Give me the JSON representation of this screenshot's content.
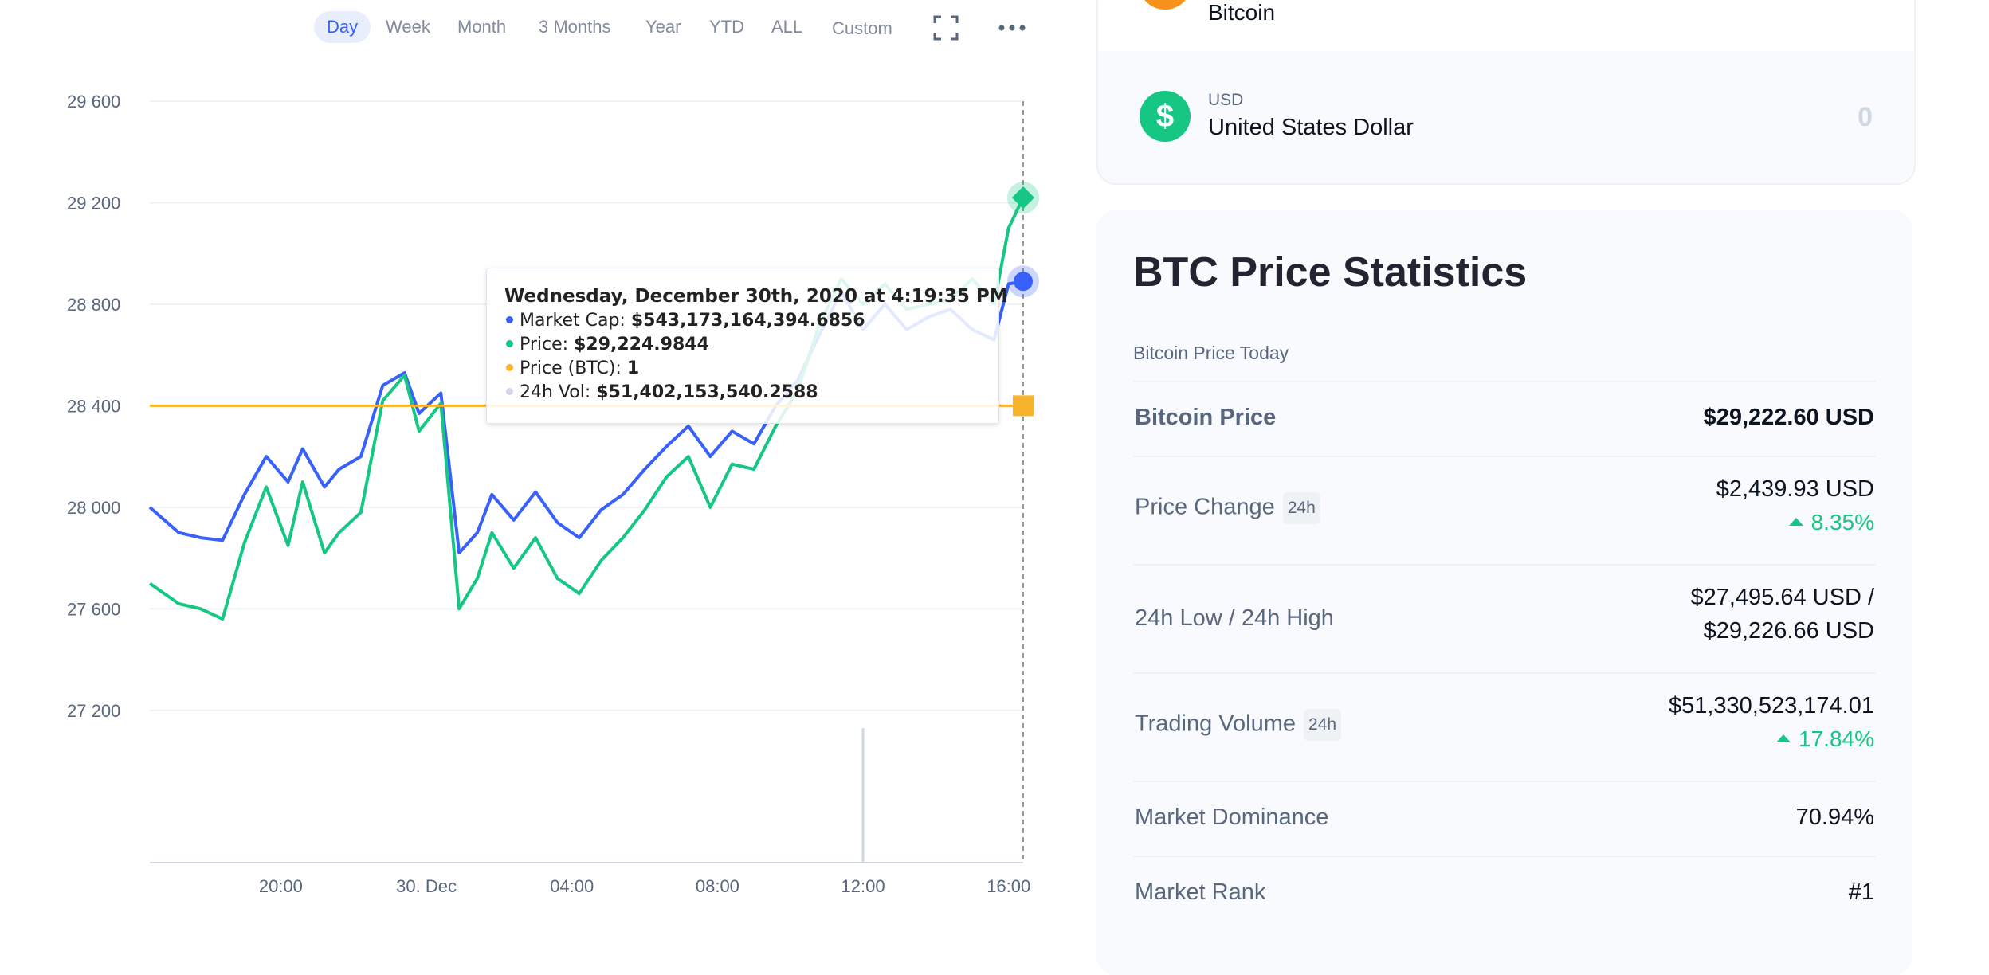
{
  "chart_toolbar": {
    "ranges": [
      "Day",
      "Week",
      "Month",
      "3 Months",
      "Year",
      "YTD",
      "ALL",
      "Custom"
    ],
    "active": "Day",
    "icons": [
      "fullscreen-icon",
      "more-horizontal-icon"
    ]
  },
  "chart_data": {
    "type": "line",
    "y_ticks": [
      "29 600",
      "29 200",
      "28 800",
      "28 400",
      "28 000",
      "27 600",
      "27 200"
    ],
    "ylim": [
      26600,
      29600
    ],
    "x_ticks": [
      "20:00",
      "30. Dec",
      "04:00",
      "08:00",
      "12:00",
      "16:00"
    ],
    "x_tick_hours": [
      20,
      24,
      28,
      32,
      36,
      40
    ],
    "xlim_hours": [
      16.4,
      40.4
    ],
    "grid": true,
    "series": [
      {
        "name": "Market Cap",
        "color": "#3861fb",
        "x": [
          16.4,
          17.2,
          17.8,
          18.4,
          19.0,
          19.6,
          20.2,
          20.6,
          21.2,
          21.6,
          22.2,
          22.8,
          23.4,
          23.8,
          24.4,
          24.9,
          25.4,
          25.8,
          26.4,
          27.0,
          27.6,
          28.2,
          28.8,
          29.4,
          30.0,
          30.6,
          31.2,
          31.8,
          32.4,
          33.0,
          33.6,
          34.2,
          34.8,
          35.4,
          36.0,
          36.6,
          37.2,
          37.8,
          38.4,
          39.0,
          39.6,
          40.0,
          40.4
        ],
        "values": [
          28000,
          27900,
          27880,
          27870,
          28050,
          28200,
          28100,
          28230,
          28080,
          28150,
          28200,
          28480,
          28530,
          28370,
          28450,
          27820,
          27900,
          28050,
          27950,
          28060,
          27940,
          27880,
          27990,
          28050,
          28150,
          28240,
          28320,
          28200,
          28300,
          28250,
          28400,
          28500,
          28680,
          28850,
          28700,
          28800,
          28700,
          28750,
          28780,
          28700,
          28660,
          28880,
          28890
        ]
      },
      {
        "name": "Price",
        "color": "#16c784",
        "x": [
          16.4,
          17.2,
          17.8,
          18.4,
          19.0,
          19.6,
          20.2,
          20.6,
          21.2,
          21.6,
          22.2,
          22.8,
          23.4,
          23.8,
          24.4,
          24.9,
          25.4,
          25.8,
          26.4,
          27.0,
          27.6,
          28.2,
          28.8,
          29.4,
          30.0,
          30.6,
          31.2,
          31.8,
          32.4,
          33.0,
          33.6,
          34.2,
          34.8,
          35.4,
          36.0,
          36.6,
          37.2,
          37.8,
          38.4,
          39.0,
          39.6,
          40.0,
          40.4
        ],
        "values": [
          27700,
          27620,
          27600,
          27560,
          27860,
          28080,
          27850,
          28100,
          27820,
          27900,
          27980,
          28420,
          28520,
          28300,
          28410,
          27600,
          27720,
          27900,
          27760,
          27880,
          27720,
          27660,
          27790,
          27880,
          27990,
          28120,
          28200,
          28000,
          28170,
          28150,
          28320,
          28460,
          28720,
          28900,
          28800,
          28880,
          28780,
          28800,
          28820,
          28900,
          28800,
          29100,
          29220
        ]
      },
      {
        "name": "Price (BTC)",
        "color": "#f7b32b",
        "x": [
          16.4,
          40.4
        ],
        "values": [
          28400,
          28400
        ]
      },
      {
        "name": "24h Vol",
        "color": "#cfd6e4",
        "x": [
          36.0
        ],
        "values": [
          27130
        ]
      }
    ],
    "tooltip": {
      "title": "Wednesday, December 30th, 2020 at 4:19:35 PM",
      "rows": [
        {
          "label": "Market Cap:",
          "value": "$543,173,164,394.6856",
          "color": "#3861fb"
        },
        {
          "label": "Price:",
          "value": "$29,224.9844",
          "color": "#16c784"
        },
        {
          "label": "Price (BTC):",
          "value": "1",
          "color": "#f7b32b"
        },
        {
          "label": "24h Vol:",
          "value": "$51,402,153,540.2588",
          "color": "#cfd6e4"
        }
      ]
    }
  },
  "currency_card": {
    "top_name": "Bitcoin",
    "usd_code": "USD",
    "usd_name": "United States Dollar",
    "usd_value": "0",
    "usd_symbol": "$"
  },
  "stats": {
    "title": "BTC Price Statistics",
    "subtitle": "Bitcoin Price Today",
    "bitcoin_price": {
      "label": "Bitcoin Price",
      "value": "$29,222.60 USD"
    },
    "price_change": {
      "label": "Price Change",
      "badge": "24h",
      "value": "$2,439.93 USD",
      "change": "8.35%"
    },
    "low_high": {
      "label": "24h Low / 24h High",
      "value_line1": "$27,495.64 USD /",
      "value_line2": "$29,226.66 USD"
    },
    "trading_volume": {
      "label": "Trading Volume",
      "badge": "24h",
      "value": "$51,330,523,174.01",
      "change": "17.84%"
    },
    "market_dominance": {
      "label": "Market Dominance",
      "value": "70.94%"
    },
    "market_rank": {
      "label": "Market Rank",
      "value": "#1"
    }
  },
  "colors": {
    "accent_blue": "#3861fb",
    "accent_green": "#16c784",
    "accent_orange": "#f7b32b",
    "btc_orange": "#f7931a"
  }
}
